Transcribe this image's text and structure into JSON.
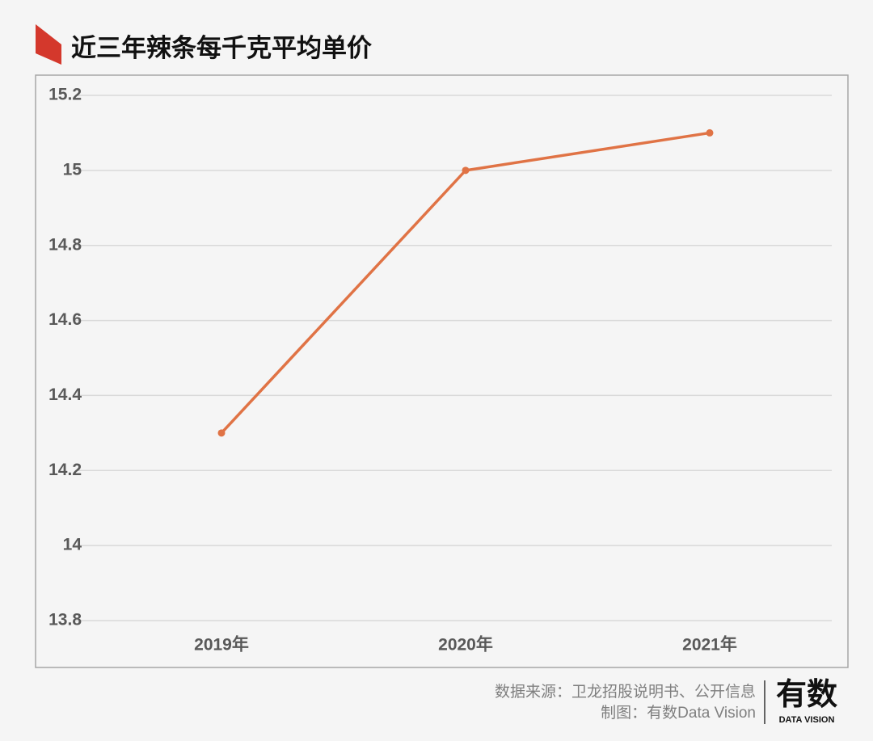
{
  "chart_data": {
    "type": "line",
    "title": "近三年辣条每千克平均单价",
    "categories": [
      "2019年",
      "2020年",
      "2021年"
    ],
    "values": [
      14.3,
      15.0,
      15.1
    ],
    "color": "#e07345",
    "ylim": [
      13.8,
      15.2
    ],
    "yticks": [
      13.8,
      14,
      14.2,
      14.4,
      14.6,
      14.8,
      15,
      15.2
    ],
    "grid": true,
    "source": "数据来源：卫龙招股说明书、公开信息",
    "credit": "制图：有数Data Vision",
    "logo": "有数",
    "logo_subtitle": "DATA VISION"
  }
}
